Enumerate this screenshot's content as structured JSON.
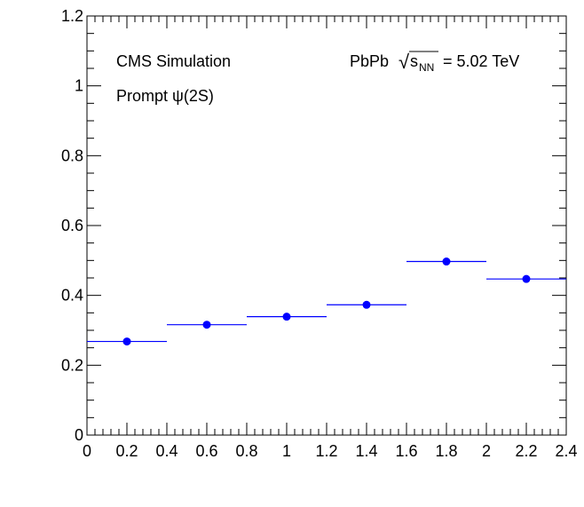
{
  "chart_data": {
    "type": "scatter",
    "annotations": {
      "experiment": "CMS Simulation",
      "particle": "Prompt ψ(2S)",
      "system": "PbPb",
      "sqrt_symbol": "√",
      "energy_var": "s",
      "energy_sub": "NN",
      "energy_value": "= 5.02 TeV"
    },
    "xlim": [
      0,
      2.4
    ],
    "ylim": [
      0,
      1.2
    ],
    "x_ticks": [
      0,
      0.2,
      0.4,
      0.6,
      0.8,
      1,
      1.2,
      1.4,
      1.6,
      1.8,
      2,
      2.2,
      2.4
    ],
    "x_tick_labels": [
      "0",
      "0.2",
      "0.4",
      "0.6",
      "0.8",
      "1",
      "1.2",
      "1.4",
      "1.6",
      "1.8",
      "2",
      "2.2",
      "2.4"
    ],
    "y_ticks": [
      0,
      0.2,
      0.4,
      0.6,
      0.8,
      1,
      1.2
    ],
    "y_tick_labels": [
      "0",
      "0.2",
      "0.4",
      "0.6",
      "0.8",
      "1",
      "1.2"
    ],
    "grid": false,
    "marker_color": "#0000ff",
    "points": [
      {
        "x": 0.2,
        "xlow": 0.0,
        "xhigh": 0.4,
        "y": 0.268
      },
      {
        "x": 0.6,
        "xlow": 0.4,
        "xhigh": 0.8,
        "y": 0.316
      },
      {
        "x": 1.0,
        "xlow": 0.8,
        "xhigh": 1.2,
        "y": 0.339
      },
      {
        "x": 1.4,
        "xlow": 1.2,
        "xhigh": 1.6,
        "y": 0.373
      },
      {
        "x": 1.8,
        "xlow": 1.6,
        "xhigh": 2.0,
        "y": 0.497
      },
      {
        "x": 2.2,
        "xlow": 2.0,
        "xhigh": 2.4,
        "y": 0.447
      }
    ]
  }
}
